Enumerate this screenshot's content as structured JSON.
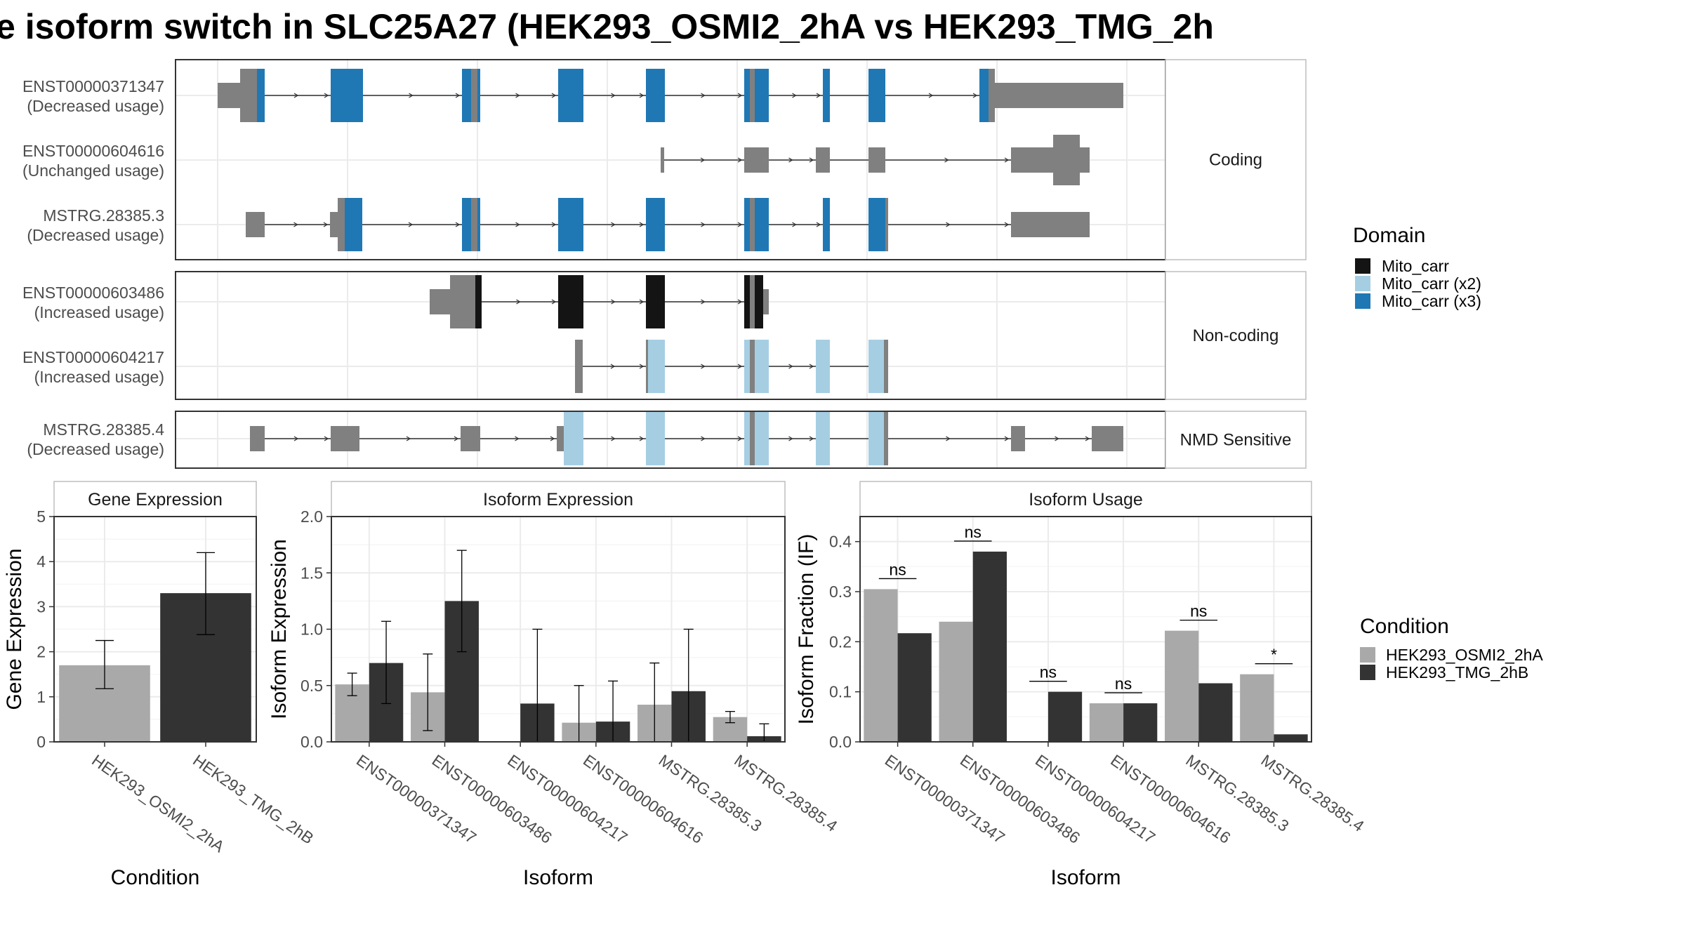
{
  "title": "e isoform switch in SLC25A27 (HEK293_OSMI2_2hA vs HEK293_TMG_2h",
  "colors": {
    "exon": "#808080",
    "mito_carr": "#141414",
    "mito_carr_x2": "#A6CEE3",
    "mito_carr_x3": "#1F78B4",
    "cond_a": "#A9A9A9",
    "cond_b": "#333333"
  },
  "structure": {
    "domain_legend_title": "Domain",
    "domains": [
      {
        "name": "Mito_carr",
        "color_key": "mito_carr"
      },
      {
        "name": "Mito_carr (x2)",
        "color_key": "mito_carr_x2"
      },
      {
        "name": "Mito_carr (x3)",
        "color_key": "mito_carr_x3"
      }
    ],
    "groups": [
      {
        "label": "Coding",
        "isoforms": [
          {
            "id": "ENST00000371347",
            "usage": "(Decreased usage)"
          },
          {
            "id": "ENST00000604616",
            "usage": "(Unchanged usage)"
          },
          {
            "id": "MSTRG.28385.3",
            "usage": "(Decreased usage)"
          }
        ]
      },
      {
        "label": "Non-coding",
        "isoforms": [
          {
            "id": "ENST00000603486",
            "usage": "(Increased usage)"
          },
          {
            "id": "ENST00000604217",
            "usage": "(Increased usage)"
          }
        ]
      },
      {
        "label": "NMD Sensitive",
        "isoforms": [
          {
            "id": "MSTRG.28385.4",
            "usage": "(Decreased usage)"
          }
        ]
      }
    ]
  },
  "condition_legend": {
    "title": "Condition",
    "items": [
      "HEK293_OSMI2_2hA",
      "HEK293_TMG_2hB"
    ]
  },
  "chart_data": [
    {
      "type": "bar",
      "title": "Gene Expression",
      "xlabel": "Condition",
      "ylabel": "Gene Expression",
      "ylim": [
        0,
        5
      ],
      "yticks": [
        "0",
        "1",
        "2",
        "3",
        "4",
        "5"
      ],
      "categories": [
        "HEK293_OSMI2_2hA",
        "HEK293_TMG_2hB"
      ],
      "values": [
        1.7,
        3.3
      ],
      "error_low": [
        1.18,
        2.38
      ],
      "error_high": [
        2.25,
        4.2
      ]
    },
    {
      "type": "bar",
      "title": "Isoform Expression",
      "xlabel": "Isoform",
      "ylabel": "Isoform Expression",
      "ylim": [
        0,
        2.0
      ],
      "yticks": [
        "0.0",
        "0.5",
        "1.0",
        "1.5",
        "2.0"
      ],
      "categories": [
        "ENST00000371347",
        "ENST00000603486",
        "ENST00000604217",
        "ENST00000604616",
        "MSTRG.28385.3",
        "MSTRG.28385.4"
      ],
      "series": [
        {
          "name": "HEK293_OSMI2_2hA",
          "values": [
            0.51,
            0.44,
            0.0,
            0.17,
            0.33,
            0.22
          ],
          "error_low": [
            0.41,
            0.1,
            0.0,
            0.0,
            0.0,
            0.17
          ],
          "error_high": [
            0.61,
            0.78,
            0.0,
            0.5,
            0.7,
            0.27
          ]
        },
        {
          "name": "HEK293_TMG_2hB",
          "values": [
            0.7,
            1.25,
            0.34,
            0.18,
            0.45,
            0.05
          ],
          "error_low": [
            0.34,
            0.8,
            0.0,
            0.0,
            0.0,
            0.0
          ],
          "error_high": [
            1.07,
            1.7,
            1.0,
            0.54,
            1.0,
            0.16
          ]
        }
      ]
    },
    {
      "type": "bar",
      "title": "Isoform Usage",
      "xlabel": "Isoform",
      "ylabel": "Isoform Fraction (IF)",
      "ylim": [
        0,
        0.45
      ],
      "yticks": [
        "0.0",
        "0.1",
        "0.2",
        "0.3",
        "0.4"
      ],
      "categories": [
        "ENST00000371347",
        "ENST00000603486",
        "ENST00000604217",
        "ENST00000604616",
        "MSTRG.28385.3",
        "MSTRG.28385.4"
      ],
      "series": [
        {
          "name": "HEK293_OSMI2_2hA",
          "values": [
            0.305,
            0.24,
            0.0,
            0.077,
            0.222,
            0.135
          ]
        },
        {
          "name": "HEK293_TMG_2hB",
          "values": [
            0.217,
            0.38,
            0.1,
            0.077,
            0.117,
            0.015
          ]
        }
      ],
      "significance": [
        "ns",
        "ns",
        "ns",
        "ns",
        "ns",
        "*"
      ]
    }
  ]
}
